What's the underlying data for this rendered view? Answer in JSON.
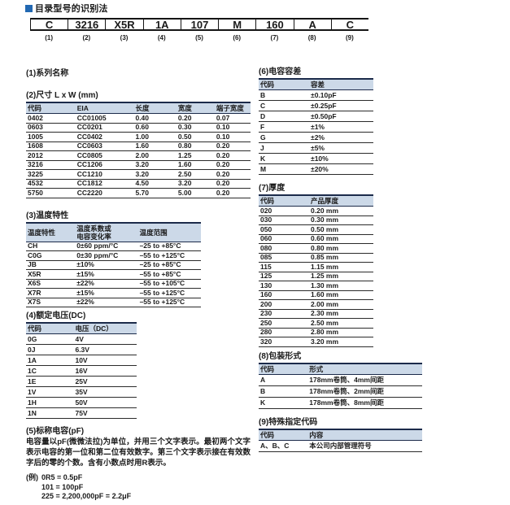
{
  "page": {
    "title": "目录型号的识别法"
  },
  "icons": {
    "title_bullet": "blue-square-bullet"
  },
  "colors": {
    "accent_blue": "#2268b2",
    "table_header_bg": "#ccd9e8",
    "table_border_navy": "#1c2b4a"
  },
  "part_number": {
    "segments": [
      {
        "code": "C",
        "label": "(1)"
      },
      {
        "code": "3216",
        "label": "(2)"
      },
      {
        "code": "X5R",
        "label": "(3)"
      },
      {
        "code": "1A",
        "label": "(4)"
      },
      {
        "code": "107",
        "label": "(5)"
      },
      {
        "code": "M",
        "label": "(6)"
      },
      {
        "code": "160",
        "label": "(7)"
      },
      {
        "code": "A",
        "label": "(8)"
      },
      {
        "code": "C",
        "label": "(9)"
      }
    ]
  },
  "sections": {
    "s1": {
      "title": "(1)系列名称"
    },
    "s2": {
      "title": "(2)尺寸 L x W (mm)",
      "headers": [
        "代码",
        "EIA",
        "长度",
        "宽度",
        "端子宽度"
      ],
      "rows": [
        [
          "0402",
          "CC01005",
          "0.40",
          "0.20",
          "0.07"
        ],
        [
          "0603",
          "CC0201",
          "0.60",
          "0.30",
          "0.10"
        ],
        [
          "1005",
          "CC0402",
          "1.00",
          "0.50",
          "0.10"
        ],
        [
          "1608",
          "CC0603",
          "1.60",
          "0.80",
          "0.20"
        ],
        [
          "2012",
          "CC0805",
          "2.00",
          "1.25",
          "0.20"
        ],
        [
          "3216",
          "CC1206",
          "3.20",
          "1.60",
          "0.20"
        ],
        [
          "3225",
          "CC1210",
          "3.20",
          "2.50",
          "0.20"
        ],
        [
          "4532",
          "CC1812",
          "4.50",
          "3.20",
          "0.20"
        ],
        [
          "5750",
          "CC2220",
          "5.70",
          "5.00",
          "0.20"
        ]
      ]
    },
    "s3": {
      "title": "(3)温度特性",
      "headers": [
        "温度特性",
        "温度系数或\n电容变化率",
        "温度范围"
      ],
      "rows": [
        [
          "CH",
          "0±60 ppm/°C",
          "–25 to +85°C"
        ],
        [
          "C0G",
          "0±30 ppm/°C",
          "–55 to +125°C"
        ],
        [
          "JB",
          "±10%",
          "–25 to +85°C"
        ],
        [
          "X5R",
          "±15%",
          "–55 to +85°C"
        ],
        [
          "X6S",
          "±22%",
          "–55 to +105°C"
        ],
        [
          "X7R",
          "±15%",
          "–55 to +125°C"
        ],
        [
          "X7S",
          "±22%",
          "–55 to +125°C"
        ]
      ]
    },
    "s4": {
      "title": "(4)额定电压(DC)",
      "headers": [
        "代码",
        "电压（DC）"
      ],
      "rows": [
        [
          "0G",
          "4V"
        ],
        [
          "0J",
          "6.3V"
        ],
        [
          "1A",
          "10V"
        ],
        [
          "1C",
          "16V"
        ],
        [
          "1E",
          "25V"
        ],
        [
          "1V",
          "35V"
        ],
        [
          "1H",
          "50V"
        ],
        [
          "1N",
          "75V"
        ]
      ]
    },
    "s5": {
      "title": "(5)标称电容(pF)",
      "body": "电容量以pF(微微法拉)为单位，并用三个文字表示。最初两个文字表示电容的第一位和第二位有效数字。第三个文字表示接在有效数字后的零的个数。含有小数点时用R表示。",
      "examples_label": "(例)",
      "examples": [
        "0R5 = 0.5pF",
        "101 = 100pF",
        "225 = 2,200,000pF = 2.2μF"
      ]
    },
    "s6": {
      "title": "(6)电容容差",
      "headers": [
        "代码",
        "容差"
      ],
      "rows": [
        [
          "B",
          "±0.10pF"
        ],
        [
          "C",
          "±0.25pF"
        ],
        [
          "D",
          "±0.50pF"
        ],
        [
          "F",
          "±1%"
        ],
        [
          "G",
          "±2%"
        ],
        [
          "J",
          "±5%"
        ],
        [
          "K",
          "±10%"
        ],
        [
          "M",
          "±20%"
        ]
      ]
    },
    "s7": {
      "title": "(7)厚度",
      "headers": [
        "代码",
        "产品厚度"
      ],
      "rows": [
        [
          "020",
          "0.20 mm"
        ],
        [
          "030",
          "0.30 mm"
        ],
        [
          "050",
          "0.50 mm"
        ],
        [
          "060",
          "0.60 mm"
        ],
        [
          "080",
          "0.80 mm"
        ],
        [
          "085",
          "0.85 mm"
        ],
        [
          "115",
          "1.15 mm"
        ],
        [
          "125",
          "1.25 mm"
        ],
        [
          "130",
          "1.30 mm"
        ],
        [
          "160",
          "1.60 mm"
        ],
        [
          "200",
          "2.00 mm"
        ],
        [
          "230",
          "2.30 mm"
        ],
        [
          "250",
          "2.50 mm"
        ],
        [
          "280",
          "2.80 mm"
        ],
        [
          "320",
          "3.20 mm"
        ]
      ]
    },
    "s8": {
      "title": "(8)包装形式",
      "headers": [
        "代码",
        "形式"
      ],
      "rows": [
        [
          "A",
          "178mm卷筒、4mm间距"
        ],
        [
          "B",
          "178mm卷筒、2mm间距"
        ],
        [
          "K",
          "178mm卷筒、8mm间距"
        ]
      ]
    },
    "s9": {
      "title": "(9)特殊指定代码",
      "headers": [
        "代码",
        "内容"
      ],
      "rows": [
        [
          "A、B、C",
          "本公司内部管理符号"
        ]
      ]
    }
  }
}
